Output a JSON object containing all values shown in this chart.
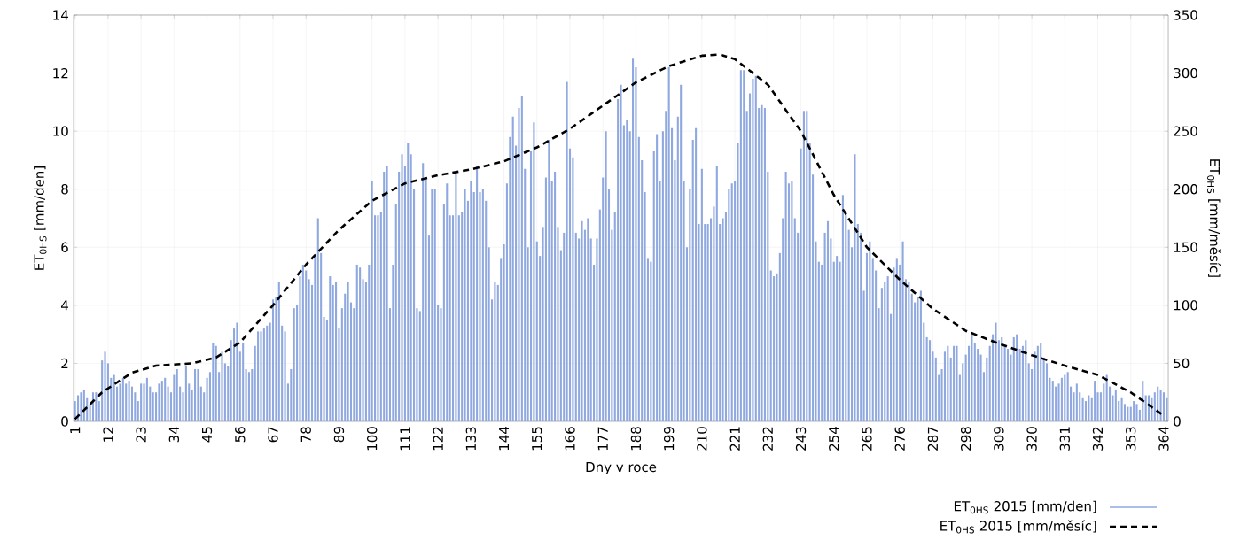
{
  "chart_data": {
    "type": "bar",
    "xlabel": "Dny v roce",
    "ylabel": "ET$_{0HS}$ [mm/den]",
    "y2label": "ET$_{0HS}$ [mm/měsíc]",
    "xlim": [
      0.5,
      365.5
    ],
    "xticks": [
      1,
      12,
      23,
      34,
      45,
      56,
      67,
      78,
      89,
      100,
      111,
      122,
      133,
      144,
      155,
      166,
      177,
      188,
      199,
      210,
      221,
      232,
      243,
      254,
      265,
      276,
      287,
      298,
      309,
      320,
      331,
      342,
      353,
      364
    ],
    "ylim": [
      0,
      14
    ],
    "yticks": [
      0,
      2,
      4,
      6,
      8,
      10,
      12,
      14
    ],
    "y2lim": [
      0,
      350
    ],
    "y2ticks": [
      0,
      50,
      100,
      150,
      200,
      250,
      300,
      350
    ],
    "grid": true,
    "legend": "bottom right",
    "series": [
      {
        "name": "ET$_{0HS}$ 2015 [mm/den]",
        "color": "#8fa8e0",
        "x": [
          1,
          2,
          3,
          4,
          5,
          6,
          7,
          8,
          9,
          10,
          11,
          12,
          13,
          14,
          15,
          16,
          17,
          18,
          19,
          20,
          21,
          22,
          23,
          24,
          25,
          26,
          27,
          28,
          29,
          30,
          31,
          32,
          33,
          34,
          35,
          36,
          37,
          38,
          39,
          40,
          41,
          42,
          43,
          44,
          45,
          46,
          47,
          48,
          49,
          50,
          51,
          52,
          53,
          54,
          55,
          56,
          57,
          58,
          59,
          60,
          61,
          62,
          63,
          64,
          65,
          66,
          67,
          68,
          69,
          70,
          71,
          72,
          73,
          74,
          75,
          76,
          77,
          78,
          79,
          80,
          81,
          82,
          83,
          84,
          85,
          86,
          87,
          88,
          89,
          90,
          91,
          92,
          93,
          94,
          95,
          96,
          97,
          98,
          99,
          100,
          101,
          102,
          103,
          104,
          105,
          106,
          107,
          108,
          109,
          110,
          111,
          112,
          113,
          114,
          115,
          116,
          117,
          118,
          119,
          120,
          121,
          122,
          123,
          124,
          125,
          126,
          127,
          128,
          129,
          130,
          131,
          132,
          133,
          134,
          135,
          136,
          137,
          138,
          139,
          140,
          141,
          142,
          143,
          144,
          145,
          146,
          147,
          148,
          149,
          150,
          151,
          152,
          153,
          154,
          155,
          156,
          157,
          158,
          159,
          160,
          161,
          162,
          163,
          164,
          165,
          166,
          167,
          168,
          169,
          170,
          171,
          172,
          173,
          174,
          175,
          176,
          177,
          178,
          179,
          180,
          181,
          182,
          183,
          184,
          185,
          186,
          187,
          188,
          189,
          190,
          191,
          192,
          193,
          194,
          195,
          196,
          197,
          198,
          199,
          200,
          201,
          202,
          203,
          204,
          205,
          206,
          207,
          208,
          209,
          210,
          211,
          212,
          213,
          214,
          215,
          216,
          217,
          218,
          219,
          220,
          221,
          222,
          223,
          224,
          225,
          226,
          227,
          228,
          229,
          230,
          231,
          232,
          233,
          234,
          235,
          236,
          237,
          238,
          239,
          240,
          241,
          242,
          243,
          244,
          245,
          246,
          247,
          248,
          249,
          250,
          251,
          252,
          253,
          254,
          255,
          256,
          257,
          258,
          259,
          260,
          261,
          262,
          263,
          264,
          265,
          266,
          267,
          268,
          269,
          270,
          271,
          272,
          273,
          274,
          275,
          276,
          277,
          278,
          279,
          280,
          281,
          282,
          283,
          284,
          285,
          286,
          287,
          288,
          289,
          290,
          291,
          292,
          293,
          294,
          295,
          296,
          297,
          298,
          299,
          300,
          301,
          302,
          303,
          304,
          305,
          306,
          307,
          308,
          309,
          310,
          311,
          312,
          313,
          314,
          315,
          316,
          317,
          318,
          319,
          320,
          321,
          322,
          323,
          324,
          325,
          326,
          327,
          328,
          329,
          330,
          331,
          332,
          333,
          334,
          335,
          336,
          337,
          338,
          339,
          340,
          341,
          342,
          343,
          344,
          345,
          346,
          347,
          348,
          349,
          350,
          351,
          352,
          353,
          354,
          355,
          356,
          357,
          358,
          359,
          360,
          361,
          362,
          363,
          364,
          365
        ],
        "values": [
          0.7,
          0.9,
          1.0,
          1.1,
          0.8,
          0.6,
          1.0,
          1.0,
          0.7,
          2.1,
          2.4,
          2.0,
          1.5,
          1.6,
          1.2,
          1.3,
          1.5,
          1.3,
          1.4,
          1.2,
          1.0,
          0.7,
          1.3,
          1.3,
          1.5,
          1.2,
          1.0,
          1.0,
          1.3,
          1.4,
          1.5,
          1.2,
          1.0,
          1.6,
          1.8,
          1.2,
          1.0,
          1.9,
          1.3,
          1.1,
          1.8,
          1.8,
          1.2,
          1.0,
          1.5,
          1.7,
          2.7,
          2.6,
          1.7,
          2.4,
          2.0,
          1.9,
          2.8,
          3.2,
          3.4,
          2.4,
          2.7,
          1.8,
          1.7,
          1.8,
          2.6,
          3.1,
          3.1,
          3.2,
          3.3,
          3.4,
          4.2,
          4.3,
          4.8,
          3.3,
          3.1,
          1.3,
          1.8,
          3.9,
          4.0,
          5.0,
          5.4,
          5.2,
          4.9,
          4.7,
          5.7,
          7.0,
          5.8,
          3.6,
          3.5,
          5.0,
          4.7,
          4.8,
          3.2,
          3.9,
          4.4,
          4.8,
          4.1,
          3.9,
          5.4,
          5.3,
          4.9,
          4.8,
          5.4,
          8.3,
          7.1,
          7.1,
          7.2,
          8.6,
          8.8,
          3.9,
          5.4,
          7.5,
          8.6,
          9.2,
          8.8,
          9.6,
          9.2,
          8.0,
          3.9,
          3.8,
          8.9,
          8.4,
          6.4,
          8.0,
          8.0,
          4.0,
          3.9,
          7.5,
          8.2,
          7.1,
          7.1,
          8.6,
          7.1,
          7.2,
          8.0,
          7.6,
          8.3,
          7.9,
          8.8,
          7.9,
          8.0,
          7.6,
          6.0,
          4.2,
          4.8,
          4.7,
          5.6,
          6.1,
          8.2,
          9.8,
          10.5,
          9.5,
          10.8,
          11.2,
          8.7,
          6.0,
          9.3,
          10.3,
          6.2,
          5.7,
          6.7,
          8.4,
          9.7,
          8.3,
          8.6,
          6.7,
          5.9,
          6.5,
          11.7,
          9.4,
          9.1,
          6.5,
          6.3,
          6.9,
          6.6,
          7.0,
          6.3,
          5.4,
          6.3,
          7.3,
          8.4,
          10.0,
          8.0,
          6.6,
          7.2,
          11.1,
          11.6,
          10.2,
          10.4,
          10.0,
          12.5,
          12.2,
          9.8,
          9.0,
          7.9,
          5.6,
          5.5,
          9.3,
          9.9,
          8.3,
          10.0,
          10.7,
          12.2,
          10.1,
          9.0,
          10.5,
          11.6,
          8.3,
          6.0,
          8.0,
          9.7,
          10.1,
          6.8,
          8.7,
          6.8,
          6.8,
          7.0,
          7.4,
          8.8,
          6.8,
          7.0,
          7.2,
          8.0,
          8.2,
          8.3,
          9.6,
          12.1,
          12.1,
          10.7,
          11.3,
          11.8,
          11.9,
          10.8,
          10.9,
          10.8,
          8.6,
          5.2,
          5.0,
          5.1,
          5.8,
          7.0,
          8.6,
          8.2,
          8.3,
          7.0,
          6.5,
          9.4,
          10.7,
          10.7,
          9.6,
          8.5,
          6.2,
          5.5,
          5.4,
          6.5,
          6.9,
          6.3,
          5.5,
          5.7,
          5.5,
          7.8,
          7.2,
          6.6,
          6.0,
          9.2,
          6.8,
          6.5,
          4.5,
          5.8,
          6.2,
          5.6,
          5.2,
          3.9,
          4.6,
          4.8,
          5.0,
          3.7,
          5.3,
          5.6,
          5.4,
          6.2,
          4.9,
          4.8,
          4.4,
          4.1,
          4.3,
          4.5,
          3.4,
          2.9,
          2.8,
          2.4,
          2.2,
          1.6,
          1.8,
          2.4,
          2.6,
          2.2,
          2.6,
          2.6,
          1.6,
          2.0,
          2.3,
          2.6,
          3.0,
          2.7,
          2.5,
          2.3,
          1.7,
          2.2,
          2.6,
          3.0,
          3.4,
          2.8,
          2.9,
          2.6,
          2.5,
          2.3,
          2.9,
          3.0,
          2.5,
          2.6,
          2.8,
          2.0,
          1.8,
          2.4,
          2.6,
          2.7,
          2.2,
          2.0,
          1.5,
          1.4,
          1.2,
          1.3,
          1.5,
          1.6,
          1.7,
          1.2,
          1.0,
          1.3,
          1.0,
          0.8,
          0.7,
          0.9,
          0.8,
          1.4,
          1.0,
          1.0,
          1.3,
          1.6,
          1.2,
          0.9,
          1.1,
          0.7,
          0.8,
          0.6,
          0.5,
          0.5,
          0.7,
          0.6,
          0.4,
          1.4,
          0.9,
          0.9,
          0.8,
          1.0,
          1.2,
          1.1,
          1.0,
          0.8
        ]
      },
      {
        "name": "ET$_{0HS}$ 2015 [mm/měsíc]",
        "type": "line",
        "axis": "y2",
        "color": "#000000",
        "line_style": "dashed",
        "x": [
          1,
          10,
          20,
          28,
          40,
          48,
          56,
          67,
          78,
          89,
          100,
          111,
          122,
          133,
          144,
          155,
          166,
          177,
          188,
          199,
          210,
          216,
          221,
          232,
          243,
          254,
          265,
          276,
          287,
          298,
          309,
          320,
          331,
          342,
          353,
          364
        ],
        "values": [
          2,
          25,
          42,
          48,
          50,
          55,
          68,
          100,
          135,
          165,
          190,
          205,
          212,
          217,
          224,
          236,
          252,
          272,
          292,
          306,
          315,
          316,
          312,
          290,
          250,
          195,
          150,
          122,
          97,
          78,
          67,
          57,
          48,
          40,
          25,
          5
        ]
      }
    ]
  }
}
